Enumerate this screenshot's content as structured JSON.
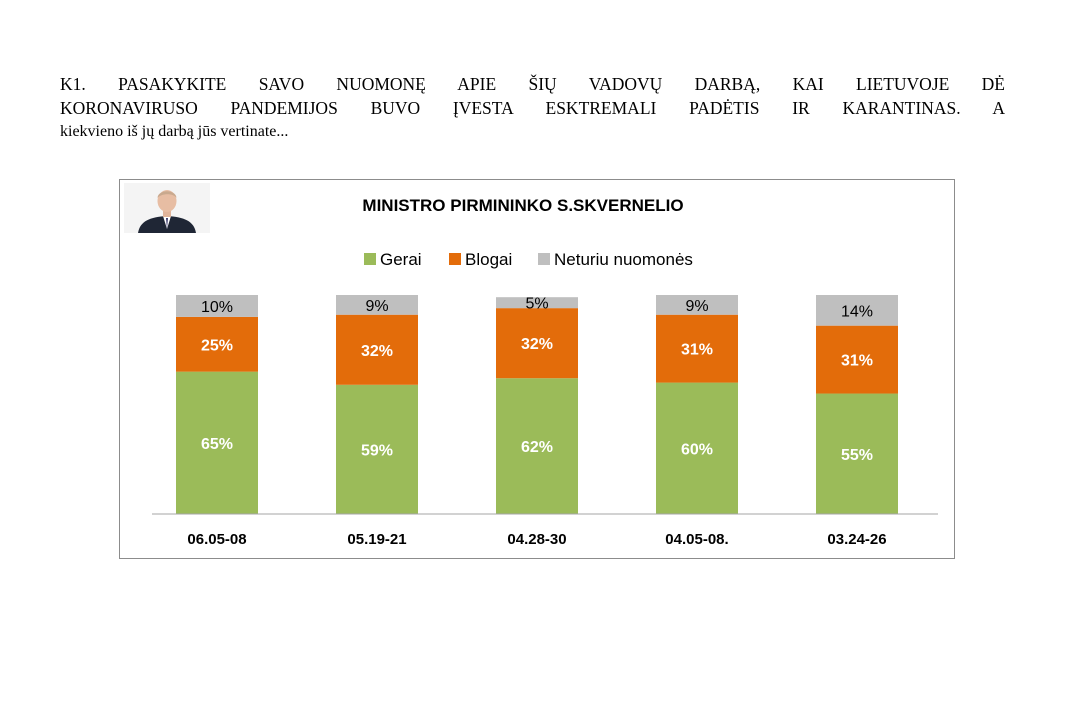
{
  "question": {
    "line1": "K1. PASAKYKITE SAVO NUOMONĘ APIE ŠIŲ VADOVŲ DARBĄ, KAI LIETUVOJE DĖ",
    "line2": "KORONAVIRUSO PANDEMIJOS BUVO ĮVESTA ESKTREMALI PADĖTIS IR KARANTINAS.  A",
    "line3": "kiekvieno iš jų darbą jūs vertinate..."
  },
  "photo": {
    "icon": "person-portrait-icon"
  },
  "chart_data": {
    "type": "bar",
    "stacked": true,
    "title": "MINISTRO PIRMININKO  S.SKVERNELIO",
    "xlabel": "",
    "ylabel": "",
    "ylim": [
      0,
      100
    ],
    "grid": false,
    "legend_position": "top-center",
    "categories": [
      "06.05-08",
      "05.19-21",
      "04.28-30",
      "04.05-08.",
      "03.24-26"
    ],
    "series": [
      {
        "name": "Gerai",
        "color": "#9bbb59",
        "label_color": "#ffffff",
        "label_bold": true,
        "values": [
          65,
          59,
          62,
          60,
          55
        ],
        "labels": [
          "65%",
          "59%",
          "62%",
          "60%",
          "55%"
        ]
      },
      {
        "name": "Blogai",
        "color": "#e36c0a",
        "label_color": "#ffffff",
        "label_bold": true,
        "values": [
          25,
          32,
          32,
          31,
          31
        ],
        "labels": [
          "25%",
          "32%",
          "32%",
          "31%",
          "31%"
        ]
      },
      {
        "name": "Neturiu nuomonės",
        "color": "#bfbfbf",
        "label_color": "#000000",
        "label_bold": false,
        "values": [
          10,
          9,
          5,
          9,
          14
        ],
        "labels": [
          "10%",
          "9%",
          "5%",
          "9%",
          "14%"
        ]
      }
    ]
  }
}
